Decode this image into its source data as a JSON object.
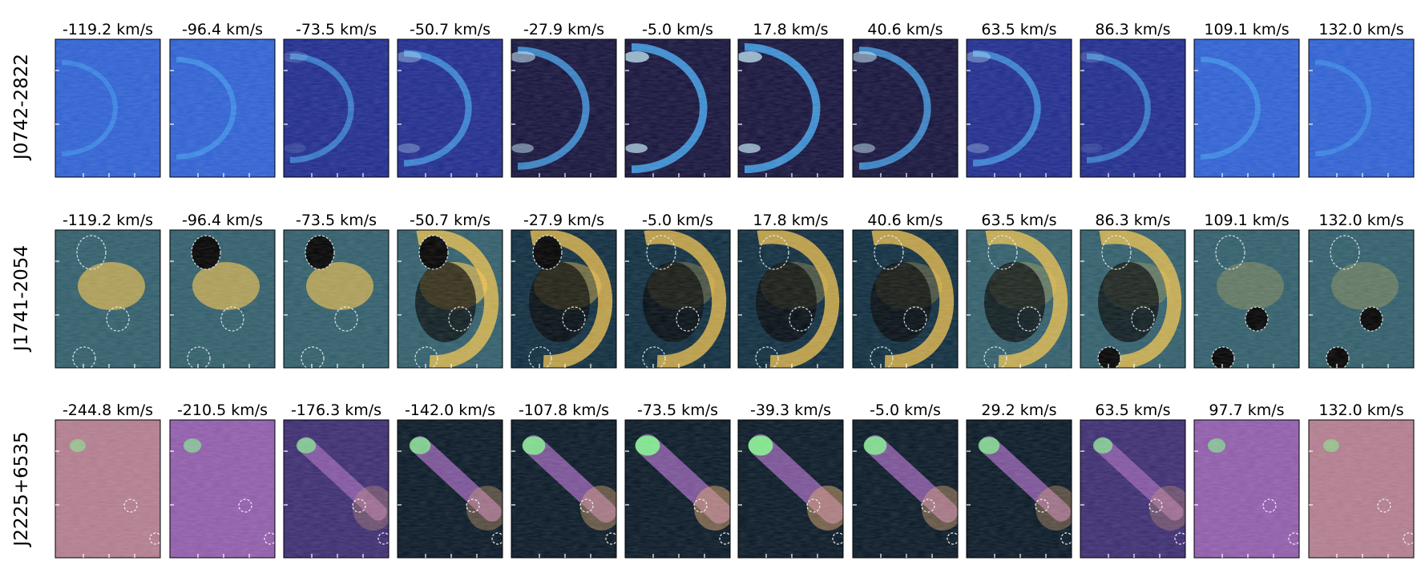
{
  "rows": [
    {
      "label": "J0742-2822",
      "colormap": "blue",
      "colors": [
        "#14113a",
        "#1e2a8c",
        "#2d5fd1",
        "#43a6ef",
        "#c9f2ff"
      ],
      "velocities": [
        "-119.2 km/s",
        "-96.4 km/s",
        "-73.5 km/s",
        "-50.7 km/s",
        "-27.9 km/s",
        "-5.0 km/s",
        "17.8 km/s",
        "40.6 km/s",
        "63.5 km/s",
        "86.3 km/s",
        "109.1 km/s",
        "132.0 km/s"
      ],
      "masks": []
    },
    {
      "label": "J1741-2054",
      "colormap": "cividis-like",
      "colors": [
        "#000000",
        "#0c2a3c",
        "#2e5b68",
        "#8c8c62",
        "#f2c24a"
      ],
      "velocities": [
        "-119.2 km/s",
        "-96.4 km/s",
        "-73.5 km/s",
        "-50.7 km/s",
        "-27.9 km/s",
        "-5.0 km/s",
        "17.8 km/s",
        "40.6 km/s",
        "63.5 km/s",
        "86.3 km/s",
        "109.1 km/s",
        "132.0 km/s"
      ],
      "masks": [
        "dashed-ellipse",
        "dashed-ellipse",
        "dashed-ellipse"
      ]
    },
    {
      "label": "J2225+6535",
      "colormap": "magma-green",
      "colors": [
        "#061623",
        "#3a2a6e",
        "#8d5aa8",
        "#d9a26a",
        "#7ff08a"
      ],
      "velocities": [
        "-244.8 km/s",
        "-210.5 km/s",
        "-176.3 km/s",
        "-142.0 km/s",
        "-107.8 km/s",
        "-73.5 km/s",
        "-39.3 km/s",
        "-5.0 km/s",
        "29.2 km/s",
        "63.5 km/s",
        "97.7 km/s",
        "132.0 km/s"
      ],
      "masks": [
        "dashed-circle",
        "dashed-circle"
      ]
    }
  ]
}
